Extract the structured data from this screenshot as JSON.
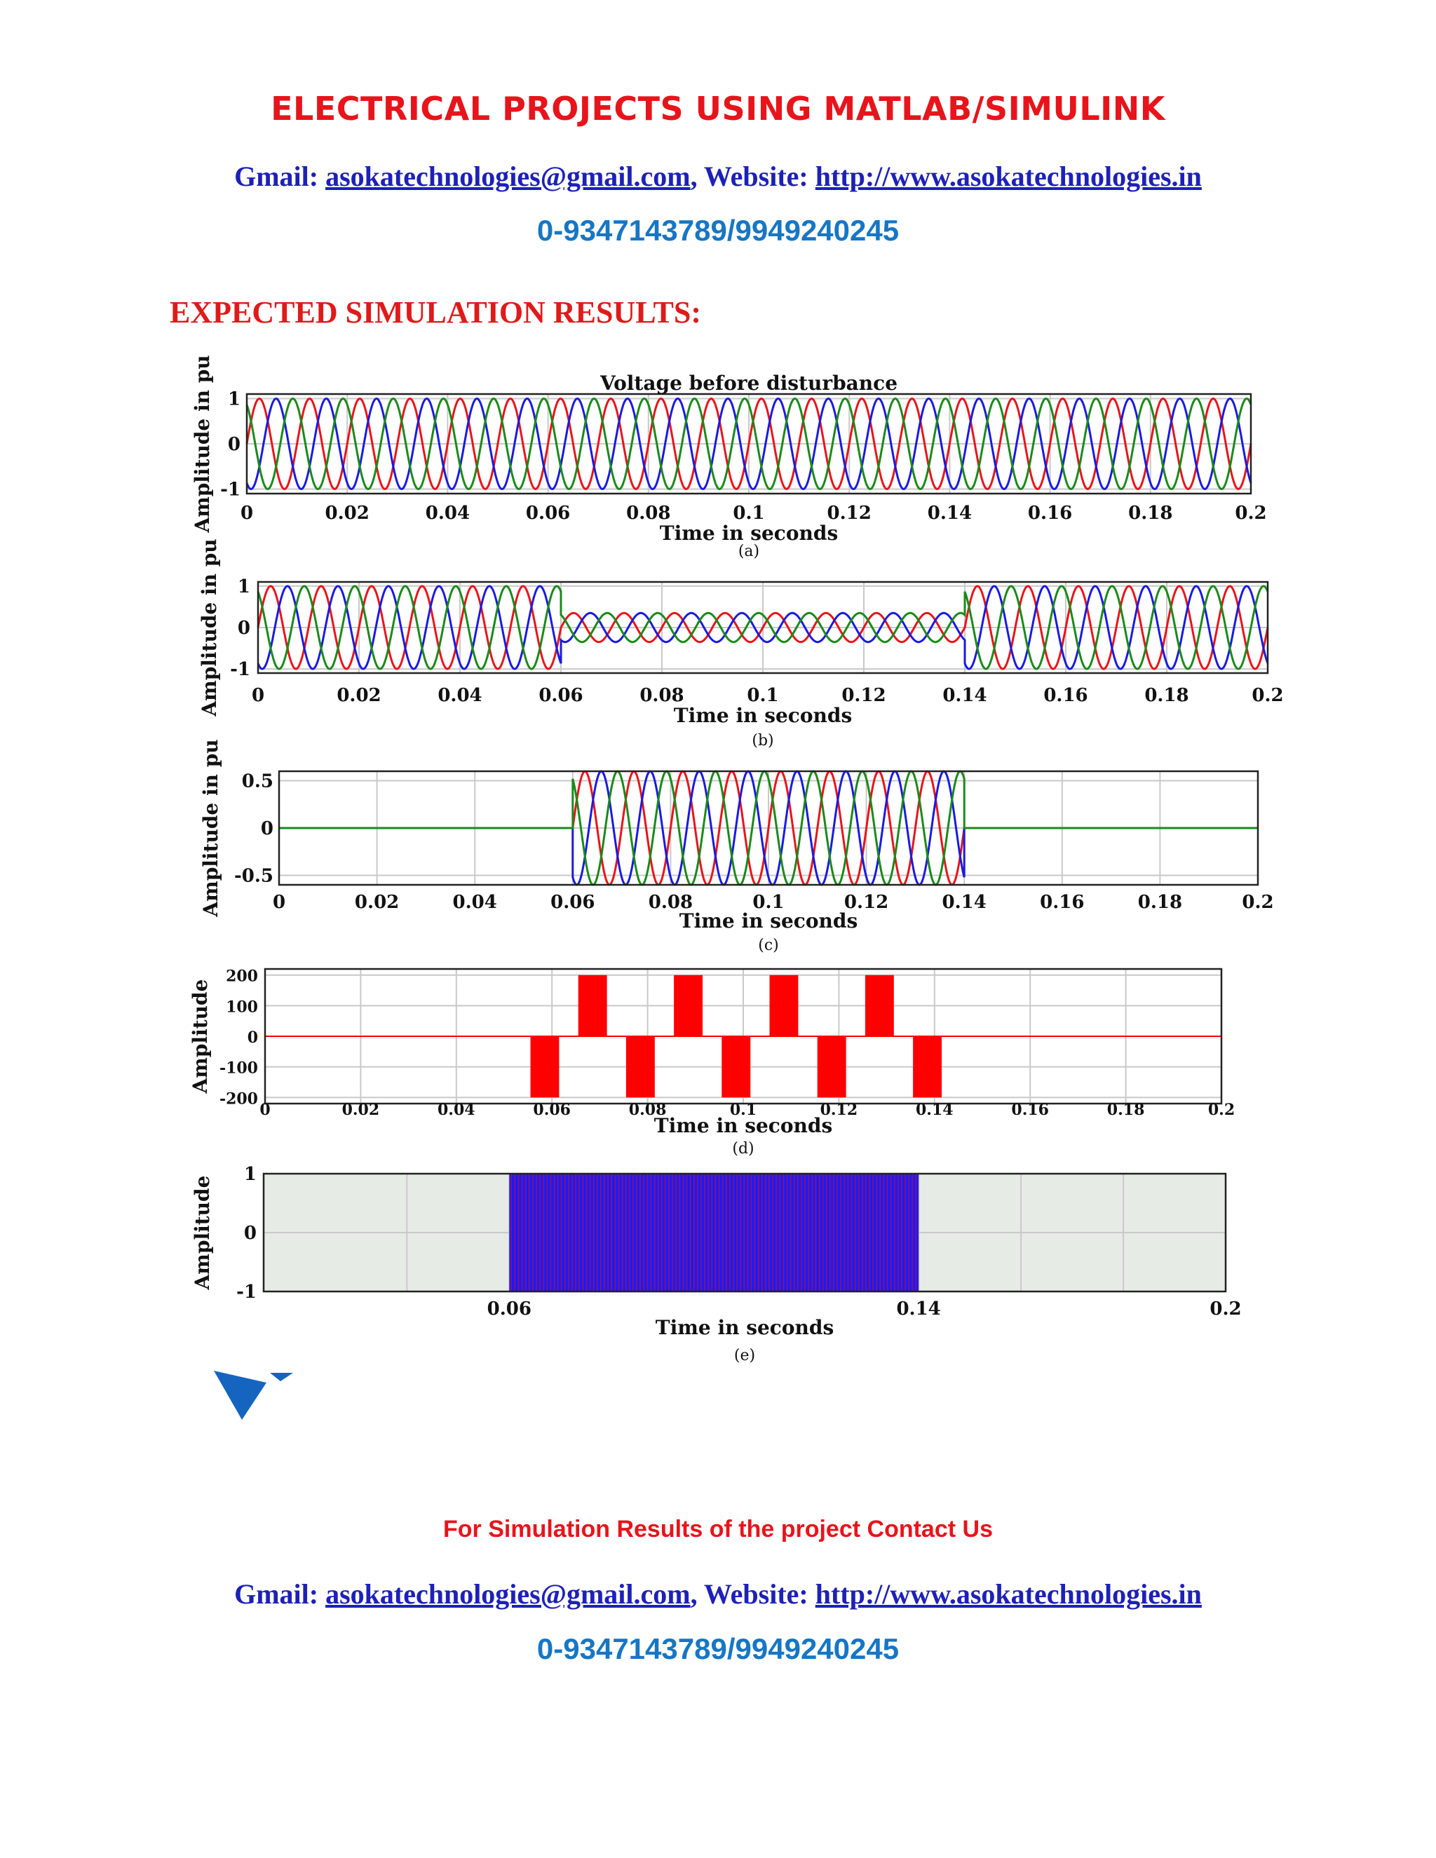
{
  "header": {
    "title": "ELECTRICAL PROJECTS USING MATLAB/SIMULINK",
    "gmail_label": "Gmail:",
    "email": "asokatechnologies@gmail.com",
    "sep": ",",
    "website_label": "Website:",
    "website": "http://www.asokatechnologies.in",
    "phone": "0-9347143789/9949240245"
  },
  "section": {
    "heading": "EXPECTED SIMULATION RESULTS:"
  },
  "footer": {
    "note": "For Simulation Results of the project Contact Us",
    "gmail_label": "Gmail:",
    "email": "asokatechnologies@gmail.com",
    "sep": ",",
    "website_label": "Website:",
    "website": "http://www.asokatechnologies.in",
    "phone": "0-9347143789/9949240245"
  },
  "colors": {
    "phase_a": "#e8141b",
    "phase_b": "#1a1ae0",
    "phase_c": "#1a8a1a",
    "title_red": "#e8141b",
    "link_blue": "#1d21b8",
    "phone_blue": "#1776c4"
  },
  "chart_data": [
    {
      "type": "line",
      "title": "Voltage before disturbance",
      "xlabel": "Time in seconds",
      "ylabel": "Amplitude in pu",
      "caption": "(a)",
      "xlim": [
        0,
        0.2
      ],
      "ylim": [
        -1.1,
        1.1
      ],
      "xticks": [
        "0",
        "0.02",
        "0.04",
        "0.06",
        "0.08",
        "0.1",
        "0.12",
        "0.14",
        "0.16",
        "0.18",
        "0.2"
      ],
      "yticks": [
        "1",
        "0",
        "-1"
      ],
      "grid": true,
      "series": [
        {
          "phase_deg": 0,
          "frequency_hz": 100,
          "color": "#e8141b",
          "segments": [
            {
              "t0": 0,
              "t1": 0.2,
              "amplitude": 1
            }
          ]
        },
        {
          "phase_deg": -120,
          "frequency_hz": 100,
          "color": "#1a1ae0",
          "segments": [
            {
              "t0": 0,
              "t1": 0.2,
              "amplitude": 1
            }
          ]
        },
        {
          "phase_deg": 120,
          "frequency_hz": 100,
          "color": "#1a8a1a",
          "segments": [
            {
              "t0": 0,
              "t1": 0.2,
              "amplitude": 1
            }
          ]
        }
      ]
    },
    {
      "type": "line",
      "title": "",
      "xlabel": "Time in seconds",
      "ylabel": "Amplitude in pu",
      "caption": "(b)",
      "xlim": [
        0,
        0.2
      ],
      "ylim": [
        -1.1,
        1.1
      ],
      "xticks": [
        "0",
        "0.02",
        "0.04",
        "0.06",
        "0.08",
        "0.1",
        "0.12",
        "0.14",
        "0.16",
        "0.18",
        "0.2"
      ],
      "yticks": [
        "1",
        "0",
        "-1"
      ],
      "grid": true,
      "series": [
        {
          "phase_deg": 0,
          "frequency_hz": 100,
          "color": "#e8141b",
          "segments": [
            {
              "t0": 0,
              "t1": 0.06,
              "amplitude": 1
            },
            {
              "t0": 0.06,
              "t1": 0.14,
              "amplitude": 0.35
            },
            {
              "t0": 0.14,
              "t1": 0.2,
              "amplitude": 1
            }
          ]
        },
        {
          "phase_deg": -120,
          "frequency_hz": 100,
          "color": "#1a1ae0",
          "segments": [
            {
              "t0": 0,
              "t1": 0.06,
              "amplitude": 1
            },
            {
              "t0": 0.06,
              "t1": 0.14,
              "amplitude": 0.35
            },
            {
              "t0": 0.14,
              "t1": 0.2,
              "amplitude": 1
            }
          ]
        },
        {
          "phase_deg": 120,
          "frequency_hz": 100,
          "color": "#1a8a1a",
          "segments": [
            {
              "t0": 0,
              "t1": 0.06,
              "amplitude": 1
            },
            {
              "t0": 0.06,
              "t1": 0.14,
              "amplitude": 0.35
            },
            {
              "t0": 0.14,
              "t1": 0.2,
              "amplitude": 1
            }
          ]
        }
      ]
    },
    {
      "type": "line",
      "title": "",
      "xlabel": "Time in seconds",
      "ylabel": "Amplitude in pu",
      "caption": "(c)",
      "xlim": [
        0,
        0.2
      ],
      "ylim": [
        -0.6,
        0.6
      ],
      "xticks": [
        "0",
        "0.02",
        "0.04",
        "0.06",
        "0.08",
        "0.1",
        "0.12",
        "0.14",
        "0.16",
        "0.18",
        "0.2"
      ],
      "yticks": [
        "0.5",
        "0",
        "-0.5"
      ],
      "ytick_values": [
        0.5,
        0,
        -0.5
      ],
      "grid": true,
      "series": [
        {
          "phase_deg": 0,
          "frequency_hz": 100,
          "color": "#e8141b",
          "segments": [
            {
              "t0": 0,
              "t1": 0.06,
              "amplitude": 0
            },
            {
              "t0": 0.06,
              "t1": 0.14,
              "amplitude": 0.6
            },
            {
              "t0": 0.14,
              "t1": 0.2,
              "amplitude": 0
            }
          ]
        },
        {
          "phase_deg": -120,
          "frequency_hz": 100,
          "color": "#1a1ae0",
          "segments": [
            {
              "t0": 0,
              "t1": 0.06,
              "amplitude": 0
            },
            {
              "t0": 0.06,
              "t1": 0.14,
              "amplitude": 0.6
            },
            {
              "t0": 0.14,
              "t1": 0.2,
              "amplitude": 0
            }
          ]
        },
        {
          "phase_deg": 120,
          "frequency_hz": 100,
          "color": "#1a8a1a",
          "segments": [
            {
              "t0": 0,
              "t1": 0.06,
              "amplitude": 0
            },
            {
              "t0": 0.06,
              "t1": 0.14,
              "amplitude": 0.6
            },
            {
              "t0": 0.14,
              "t1": 0.2,
              "amplitude": 0
            }
          ]
        }
      ]
    },
    {
      "type": "bar",
      "title": "",
      "xlabel": "Time in seconds",
      "ylabel": "Amplitude",
      "caption": "(d)",
      "xlim": [
        0,
        0.2
      ],
      "ylim": [
        -220,
        220
      ],
      "xticks": [
        "0",
        "0.02",
        "0.04",
        "0.06",
        "0.08",
        "0.1",
        "0.12",
        "0.14",
        "0.16",
        "0.18",
        "0.2"
      ],
      "yticks": [
        "200",
        "100",
        "0",
        "-100",
        "-200"
      ],
      "ytick_values": [
        200,
        100,
        0,
        -100,
        -200
      ],
      "grid": true,
      "color": "#ff0000",
      "pulses": [
        {
          "t0": 0.0555,
          "t1": 0.0615,
          "value": -200
        },
        {
          "t0": 0.0655,
          "t1": 0.0715,
          "value": 200
        },
        {
          "t0": 0.0755,
          "t1": 0.0815,
          "value": -200
        },
        {
          "t0": 0.0855,
          "t1": 0.0915,
          "value": 200
        },
        {
          "t0": 0.0955,
          "t1": 0.1015,
          "value": -200
        },
        {
          "t0": 0.1055,
          "t1": 0.1115,
          "value": 200
        },
        {
          "t0": 0.1155,
          "t1": 0.1215,
          "value": -200
        },
        {
          "t0": 0.1255,
          "t1": 0.1315,
          "value": 200
        },
        {
          "t0": 0.1355,
          "t1": 0.1415,
          "value": -200
        }
      ]
    },
    {
      "type": "area",
      "title": "",
      "xlabel": "Time in seconds",
      "ylabel": "Amplitude",
      "caption": "(e)",
      "xlim": [
        0.012,
        0.2
      ],
      "ylim": [
        -1,
        1
      ],
      "xticks": [
        "0.06",
        "0.14",
        "0.2"
      ],
      "xtick_values": [
        0.06,
        0.14,
        0.2
      ],
      "yticks": [
        "1",
        "0",
        "-1"
      ],
      "grid": true,
      "background": "#e6ebe6",
      "switching_band": {
        "t0": 0.06,
        "t1": 0.14,
        "fill": "#1a1aff",
        "stripe": "#d01010"
      }
    }
  ]
}
